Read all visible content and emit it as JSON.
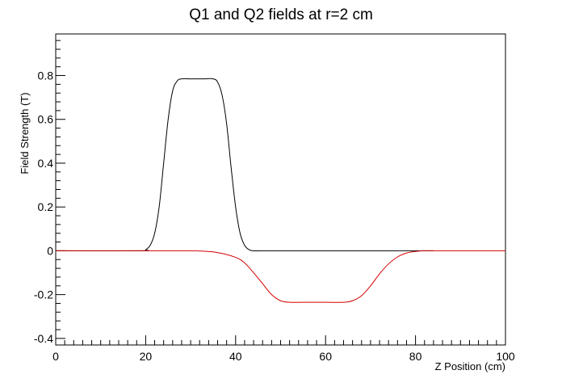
{
  "chart_data": {
    "type": "line",
    "title": "Q1 and Q2 fields at r=2 cm",
    "xlabel": "Z Position (cm)",
    "ylabel": "Field Strength (T)",
    "xlim": [
      0,
      100
    ],
    "ylim": [
      -0.43,
      0.99
    ],
    "grid": false,
    "legend": "none",
    "x_ticks": [
      0,
      20,
      40,
      60,
      80,
      100
    ],
    "x_tick_labels": [
      "0",
      "20",
      "40",
      "60",
      "80",
      "100"
    ],
    "y_ticks": [
      -0.4,
      -0.2,
      0,
      0.2,
      0.4,
      0.6,
      0.8
    ],
    "y_tick_labels": [
      "-0.4",
      "-0.2",
      "0",
      "0.2",
      "0.4",
      "0.6",
      "0.8"
    ],
    "series": [
      {
        "color": "#000000",
        "x": [
          0,
          19,
          20,
          21,
          22,
          23,
          24,
          25,
          26,
          27,
          28,
          30,
          33,
          35,
          36,
          37,
          38,
          39,
          40,
          41,
          42,
          43,
          44,
          46,
          60,
          84
        ],
        "y": [
          0,
          0,
          0.005,
          0.025,
          0.08,
          0.2,
          0.4,
          0.6,
          0.73,
          0.775,
          0.785,
          0.785,
          0.785,
          0.785,
          0.77,
          0.71,
          0.58,
          0.38,
          0.2,
          0.08,
          0.025,
          0.005,
          0,
          0,
          0,
          0
        ]
      },
      {
        "color": "#d40000",
        "x": [
          0,
          28,
          32,
          36,
          40,
          42,
          44,
          46,
          48,
          50,
          52,
          55,
          60,
          64,
          66,
          68,
          70,
          72,
          74,
          76,
          78,
          80,
          82,
          85,
          100
        ],
        "y": [
          0,
          0,
          -0.001,
          -0.008,
          -0.03,
          -0.055,
          -0.1,
          -0.15,
          -0.2,
          -0.228,
          -0.235,
          -0.235,
          -0.235,
          -0.235,
          -0.228,
          -0.205,
          -0.16,
          -0.105,
          -0.06,
          -0.028,
          -0.01,
          -0.003,
          0,
          0,
          0
        ]
      }
    ]
  }
}
